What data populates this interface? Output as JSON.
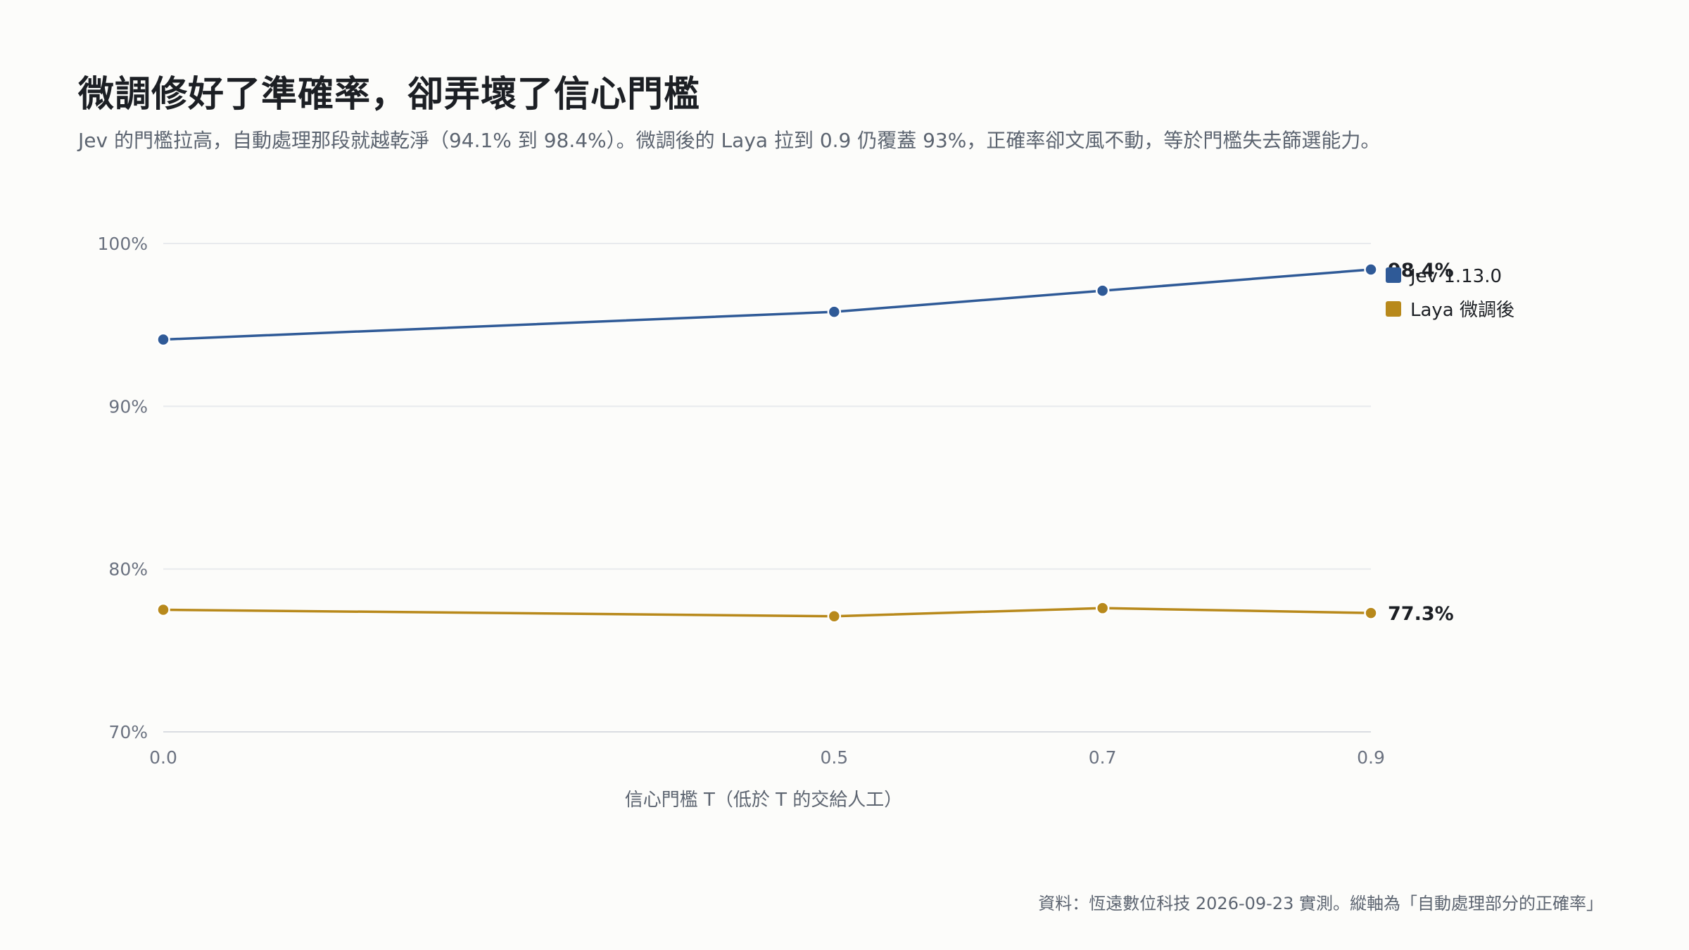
{
  "header": {
    "title": "微調修好了準確率，卻弄壞了信心門檻",
    "subtitle": "Jev 的門檻拉高，自動處理那段就越乾淨（94.1% 到 98.4%）。微調後的 Laya 拉到 0.9 仍覆蓋 93%，正確率卻文風不動，等於門檻失去篩選能力。"
  },
  "footnote": "資料：恆遠數位科技 2026-09-23 實測。縱軸為「自動處理部分的正確率」",
  "chart_data": {
    "type": "line",
    "xlabel": "信心門檻 T（低於 T 的交給人工）",
    "ylabel": "",
    "x": [
      0.0,
      0.5,
      0.7,
      0.9
    ],
    "x_tick_labels": [
      "0.0",
      "0.5",
      "0.7",
      "0.9"
    ],
    "xlim": [
      0.0,
      0.9
    ],
    "ylim": [
      70,
      100
    ],
    "y_ticks": [
      70,
      80,
      90,
      100
    ],
    "y_tick_labels": [
      "70%",
      "80%",
      "90%",
      "100%"
    ],
    "grid": true,
    "legend_position": "right",
    "series": [
      {
        "name": "Jev 1.13.0",
        "values": [
          94.1,
          95.8,
          97.1,
          98.4
        ],
        "color": "#2f5a97",
        "end_label": "98.4%"
      },
      {
        "name": "Laya 微調後",
        "values": [
          77.5,
          77.1,
          77.6,
          77.3
        ],
        "color": "#b8891b",
        "end_label": "77.3%"
      }
    ]
  }
}
